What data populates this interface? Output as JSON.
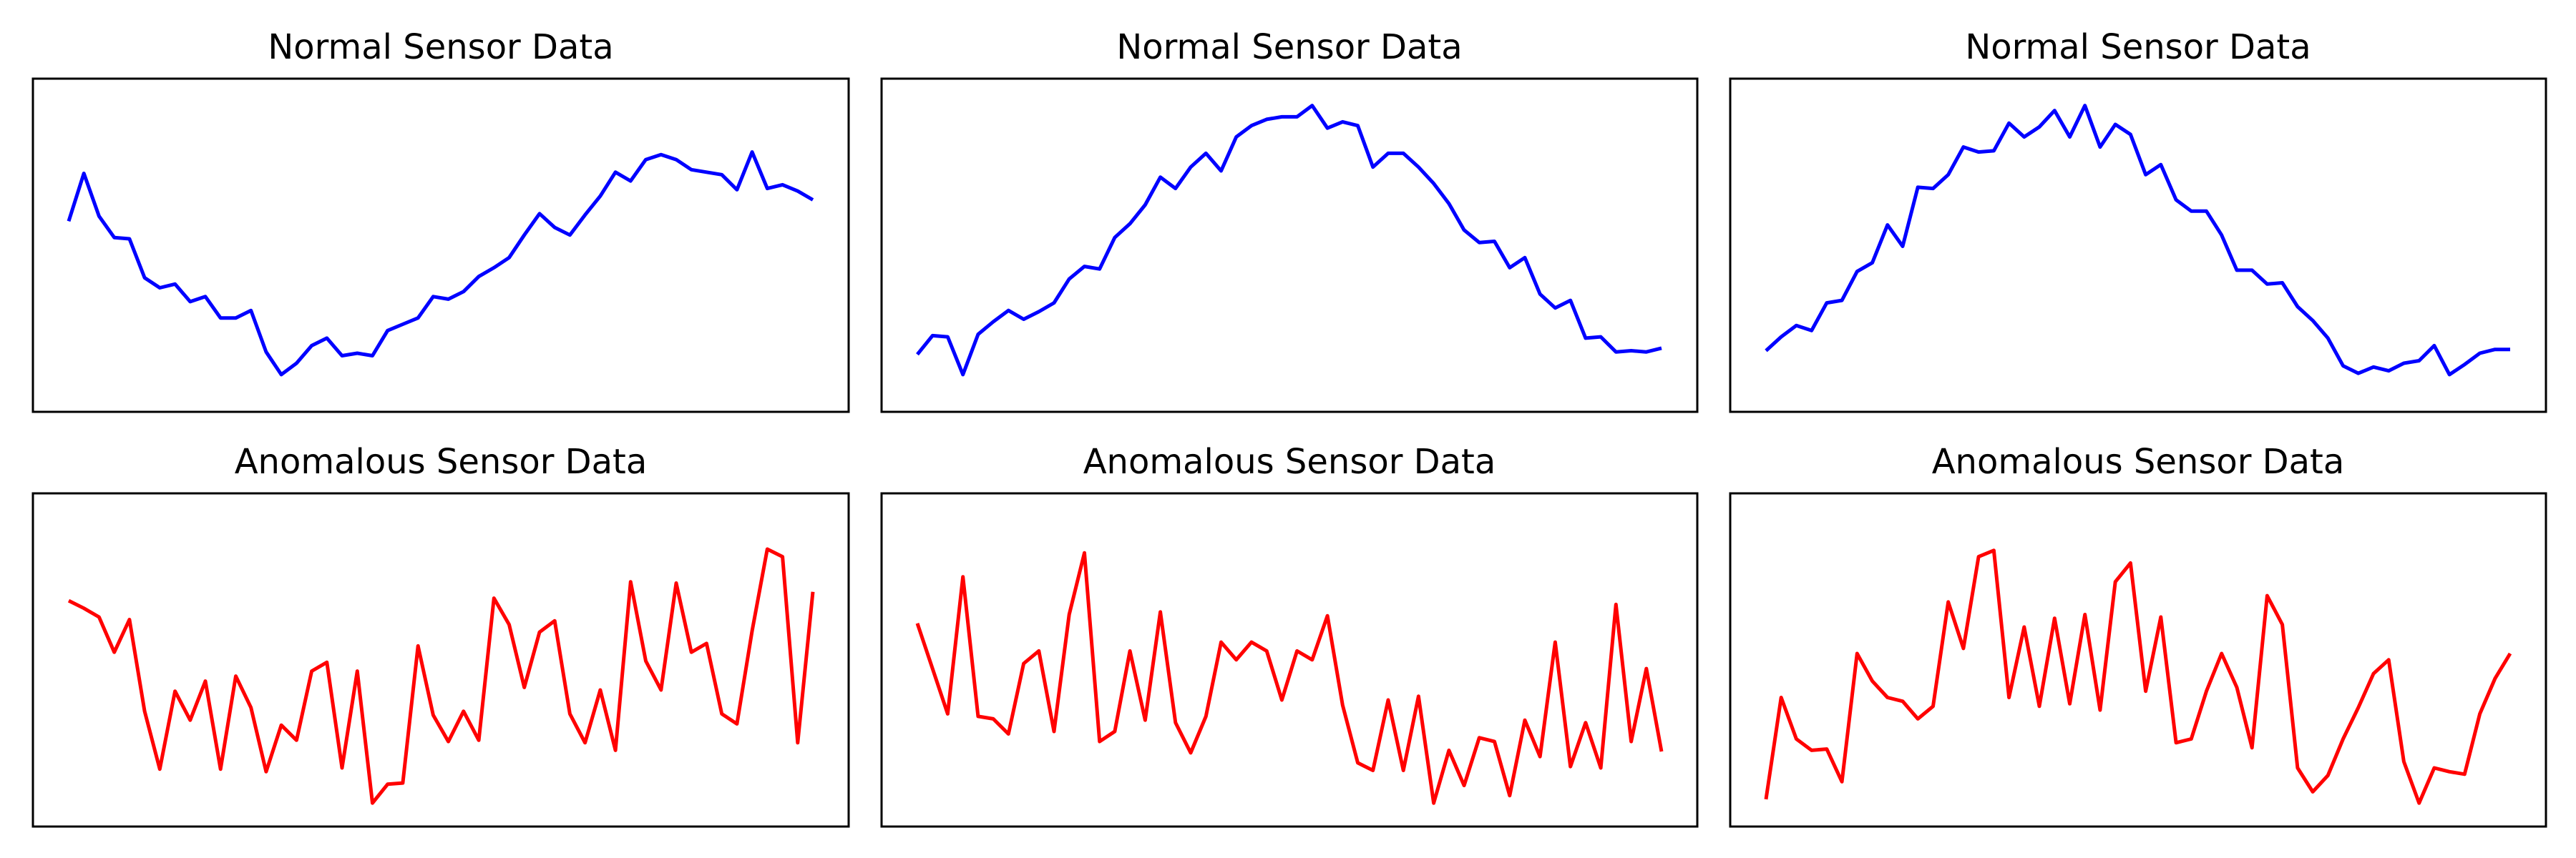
{
  "colors": {
    "normal": "#0000ff",
    "anomalous": "#ff0000"
  },
  "chart_data": [
    {
      "type": "line",
      "title": "Normal Sensor Data",
      "color": "#0000ff",
      "xlim": [
        0,
        49
      ],
      "ylim": [
        -1.2,
        1.2
      ],
      "axes_visible": false,
      "grid": false,
      "series": [
        {
          "x": [
            0,
            1,
            2,
            3,
            4,
            5,
            6,
            7,
            8,
            9,
            10,
            11,
            12,
            13,
            14,
            15,
            16,
            17,
            18,
            19,
            20,
            21,
            22,
            23,
            24,
            25,
            26,
            27,
            28,
            29,
            30,
            31,
            32,
            33,
            34,
            35,
            36,
            37,
            38,
            39,
            40,
            41,
            42,
            43,
            44,
            45,
            46,
            47,
            48,
            49
          ],
          "values": [
            0.18,
            0.56,
            0.22,
            0.05,
            0.04,
            -0.27,
            -0.35,
            -0.32,
            -0.46,
            -0.42,
            -0.59,
            -0.59,
            -0.53,
            -0.86,
            -1.04,
            -0.95,
            -0.81,
            -0.75,
            -0.89,
            -0.87,
            -0.89,
            -0.69,
            -0.64,
            -0.59,
            -0.42,
            -0.44,
            -0.38,
            -0.26,
            -0.19,
            -0.11,
            0.07,
            0.24,
            0.13,
            0.07,
            0.23,
            0.38,
            0.57,
            0.5,
            0.67,
            0.71,
            0.67,
            0.59,
            0.57,
            0.55,
            0.43,
            0.73,
            0.44,
            0.47,
            0.42,
            0.35
          ]
        }
      ]
    },
    {
      "type": "line",
      "title": "Normal Sensor Data",
      "color": "#0000ff",
      "xlim": [
        0,
        49
      ],
      "ylim": [
        -1.2,
        1.2
      ],
      "axes_visible": false,
      "grid": false,
      "series": [
        {
          "x": [
            0,
            1,
            2,
            3,
            4,
            5,
            6,
            7,
            8,
            9,
            10,
            11,
            12,
            13,
            14,
            15,
            16,
            17,
            18,
            19,
            20,
            21,
            22,
            23,
            24,
            25,
            26,
            27,
            28,
            29,
            30,
            31,
            32,
            33,
            34,
            35,
            36,
            37,
            38,
            39,
            40,
            41,
            42,
            43,
            44,
            45,
            46,
            47,
            48,
            49
          ],
          "values": [
            -0.88,
            -0.73,
            -0.74,
            -1.04,
            -0.72,
            -0.62,
            -0.53,
            -0.6,
            -0.54,
            -0.47,
            -0.28,
            -0.18,
            -0.2,
            0.05,
            0.16,
            0.31,
            0.53,
            0.44,
            0.61,
            0.72,
            0.58,
            0.85,
            0.94,
            0.99,
            1.01,
            1.01,
            1.1,
            0.92,
            0.97,
            0.94,
            0.61,
            0.72,
            0.72,
            0.61,
            0.48,
            0.32,
            0.11,
            0.01,
            0.02,
            -0.19,
            -0.11,
            -0.4,
            -0.51,
            -0.45,
            -0.75,
            -0.74,
            -0.86,
            -0.85,
            -0.86,
            -0.83
          ]
        }
      ]
    },
    {
      "type": "line",
      "title": "Normal Sensor Data",
      "color": "#0000ff",
      "xlim": [
        0,
        49
      ],
      "ylim": [
        -1.2,
        1.2
      ],
      "axes_visible": false,
      "grid": false,
      "series": [
        {
          "x": [
            0,
            1,
            2,
            3,
            4,
            5,
            6,
            7,
            8,
            9,
            10,
            11,
            12,
            13,
            14,
            15,
            16,
            17,
            18,
            19,
            20,
            21,
            22,
            23,
            24,
            25,
            26,
            27,
            28,
            29,
            30,
            31,
            32,
            33,
            34,
            35,
            36,
            37,
            38,
            39,
            40,
            41,
            42,
            43,
            44,
            45,
            46,
            47,
            48,
            49
          ],
          "values": [
            -0.85,
            -0.74,
            -0.65,
            -0.69,
            -0.47,
            -0.45,
            -0.22,
            -0.15,
            0.15,
            -0.02,
            0.45,
            0.44,
            0.55,
            0.77,
            0.73,
            0.74,
            0.96,
            0.85,
            0.93,
            1.06,
            0.85,
            1.1,
            0.77,
            0.95,
            0.87,
            0.55,
            0.63,
            0.35,
            0.26,
            0.26,
            0.07,
            -0.21,
            -0.21,
            -0.32,
            -0.31,
            -0.5,
            -0.61,
            -0.75,
            -0.97,
            -1.03,
            -0.98,
            -1.01,
            -0.95,
            -0.93,
            -0.81,
            -1.04,
            -0.96,
            -0.87,
            -0.84,
            -0.84
          ]
        }
      ]
    },
    {
      "type": "line",
      "title": "Anomalous Sensor Data",
      "color": "#ff0000",
      "xlim": [
        0,
        49
      ],
      "ylim": [
        -1.2,
        1.2
      ],
      "axes_visible": false,
      "grid": false,
      "series": [
        {
          "x": [
            0,
            1,
            2,
            3,
            4,
            5,
            6,
            7,
            8,
            9,
            10,
            11,
            12,
            13,
            14,
            15,
            16,
            17,
            18,
            19,
            20,
            21,
            22,
            23,
            24,
            25,
            26,
            27,
            28,
            29,
            30,
            31,
            32,
            33,
            34,
            35,
            36,
            37,
            38,
            39,
            40,
            41,
            42,
            43,
            44,
            45,
            46,
            47,
            48,
            49
          ],
          "values": [
            0.46,
            0.4,
            0.33,
            0.05,
            0.31,
            -0.42,
            -0.88,
            -0.26,
            -0.49,
            -0.18,
            -0.88,
            -0.14,
            -0.39,
            -0.9,
            -0.53,
            -0.65,
            -0.1,
            -0.03,
            -0.87,
            -0.1,
            -1.15,
            -1.0,
            -0.99,
            0.1,
            -0.45,
            -0.66,
            -0.42,
            -0.65,
            0.48,
            0.27,
            -0.23,
            0.21,
            0.3,
            -0.44,
            -0.67,
            -0.25,
            -0.73,
            0.61,
            -0.02,
            -0.25,
            0.6,
            0.05,
            0.12,
            -0.44,
            -0.52,
            0.22,
            0.87,
            0.81,
            -0.67,
            0.53
          ]
        }
      ]
    },
    {
      "type": "line",
      "title": "Anomalous Sensor Data",
      "color": "#ff0000",
      "xlim": [
        0,
        49
      ],
      "ylim": [
        -1.2,
        1.2
      ],
      "axes_visible": false,
      "grid": false,
      "series": [
        {
          "x": [
            0,
            1,
            2,
            3,
            4,
            5,
            6,
            7,
            8,
            9,
            10,
            11,
            12,
            13,
            14,
            15,
            16,
            17,
            18,
            19,
            20,
            21,
            22,
            23,
            24,
            25,
            26,
            27,
            28,
            29,
            30,
            31,
            32,
            33,
            34,
            35,
            36,
            37,
            38,
            39,
            40,
            41,
            42,
            43,
            44,
            45,
            46,
            47,
            48,
            49
          ],
          "values": [
            0.28,
            -0.08,
            -0.44,
            0.65,
            -0.46,
            -0.48,
            -0.6,
            -0.04,
            0.06,
            -0.58,
            0.35,
            0.84,
            -0.66,
            -0.58,
            0.06,
            -0.49,
            0.37,
            -0.51,
            -0.75,
            -0.46,
            0.13,
            -0.01,
            0.13,
            0.06,
            -0.33,
            0.06,
            -0.01,
            0.34,
            -0.37,
            -0.83,
            -0.89,
            -0.33,
            -0.89,
            -0.3,
            -1.15,
            -0.73,
            -1.01,
            -0.63,
            -0.66,
            -1.09,
            -0.49,
            -0.78,
            0.13,
            -0.86,
            -0.51,
            -0.87,
            0.43,
            -0.66,
            -0.08,
            -0.74
          ]
        }
      ]
    },
    {
      "type": "line",
      "title": "Anomalous Sensor Data",
      "color": "#ff0000",
      "xlim": [
        0,
        49
      ],
      "ylim": [
        -1.2,
        1.2
      ],
      "axes_visible": false,
      "grid": false,
      "series": [
        {
          "x": [
            0,
            1,
            2,
            3,
            4,
            5,
            6,
            7,
            8,
            9,
            10,
            11,
            12,
            13,
            14,
            15,
            16,
            17,
            18,
            19,
            20,
            21,
            22,
            23,
            24,
            25,
            26,
            27,
            28,
            29,
            30,
            31,
            32,
            33,
            34,
            35,
            36,
            37,
            38,
            39,
            40,
            41,
            42,
            43,
            44,
            45,
            46,
            47,
            48,
            49
          ],
          "values": [
            -1.12,
            -0.31,
            -0.64,
            -0.73,
            -0.72,
            -0.98,
            0.04,
            -0.18,
            -0.31,
            -0.34,
            -0.48,
            -0.38,
            0.45,
            0.08,
            0.81,
            0.86,
            -0.31,
            0.25,
            -0.38,
            0.32,
            -0.36,
            0.35,
            -0.41,
            0.61,
            0.76,
            -0.26,
            0.33,
            -0.67,
            -0.64,
            -0.26,
            0.04,
            -0.23,
            -0.71,
            0.5,
            0.27,
            -0.87,
            -1.06,
            -0.93,
            -0.64,
            -0.39,
            -0.12,
            -0.01,
            -0.82,
            -1.15,
            -0.87,
            -0.9,
            -0.92,
            -0.44,
            -0.16,
            0.04
          ]
        }
      ]
    }
  ]
}
